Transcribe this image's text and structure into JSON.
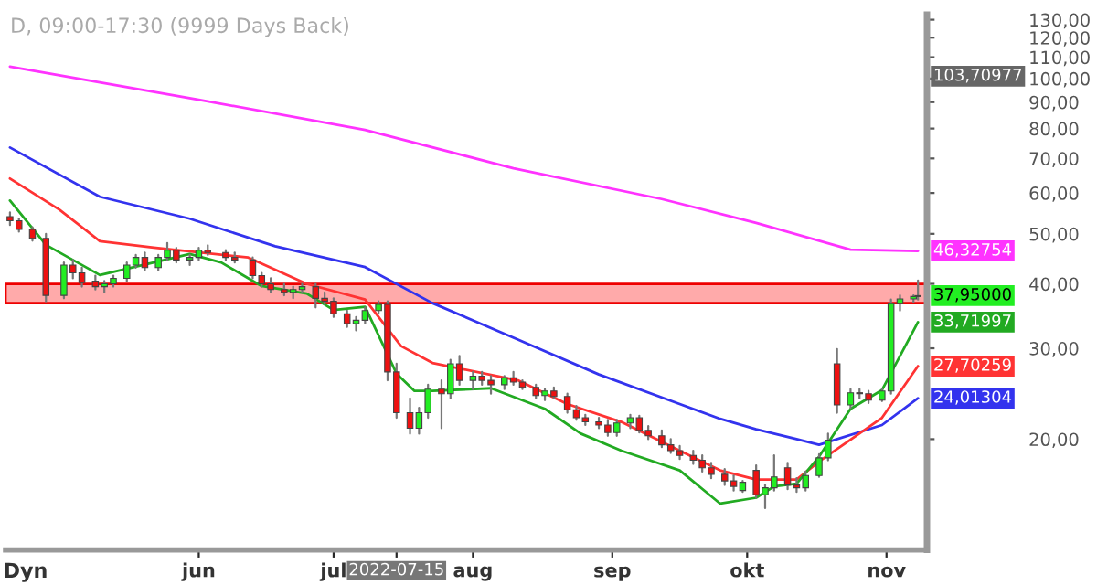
{
  "chart_data": {
    "type": "candlestick",
    "title": "D, 09:00-17:30 (9999 Days Back)",
    "log": "y",
    "grid": false,
    "legend": false,
    "xlim": [
      "2022-04-19",
      "2022-11-10"
    ],
    "ylim": [
      12.2,
      133
    ],
    "xticks": [
      {
        "value": "2022-06-01",
        "label": "jun"
      },
      {
        "value": "2022-07-01",
        "label": "jul"
      },
      {
        "value": "2022-07-15",
        "label": "2022-07-15"
      },
      {
        "value": "2022-08-01",
        "label": "aug"
      },
      {
        "value": "2022-09-01",
        "label": "sep"
      },
      {
        "value": "2022-10-01",
        "label": "okt"
      },
      {
        "value": "2022-11-01",
        "label": "nov"
      }
    ],
    "yticks": [
      {
        "value": 20,
        "label": "20,00"
      },
      {
        "value": 30,
        "label": "30,00"
      },
      {
        "value": 40,
        "label": "40,00"
      },
      {
        "value": 50,
        "label": "50,00"
      },
      {
        "value": 60,
        "label": "60,00"
      },
      {
        "value": 70,
        "label": "70,00"
      },
      {
        "value": 80,
        "label": "80,00"
      },
      {
        "value": 90,
        "label": "90,00"
      },
      {
        "value": 100,
        "label": "100,00"
      },
      {
        "value": 110,
        "label": "110,00"
      },
      {
        "value": 120,
        "label": "120,00"
      },
      {
        "value": 130,
        "label": "130,00"
      }
    ],
    "x": [
      "2022-04-20",
      "2022-04-22",
      "2022-04-25",
      "2022-04-28",
      "2022-05-02",
      "2022-05-04",
      "2022-05-06",
      "2022-05-09",
      "2022-05-11",
      "2022-05-13",
      "2022-05-16",
      "2022-05-18",
      "2022-05-20",
      "2022-05-23",
      "2022-05-25",
      "2022-05-27",
      "2022-05-30",
      "2022-06-01",
      "2022-06-03",
      "2022-06-07",
      "2022-06-09",
      "2022-06-13",
      "2022-06-15",
      "2022-06-17",
      "2022-06-20",
      "2022-06-22",
      "2022-06-24",
      "2022-06-27",
      "2022-06-29",
      "2022-07-01",
      "2022-07-04",
      "2022-07-06",
      "2022-07-08",
      "2022-07-11",
      "2022-07-13",
      "2022-07-15",
      "2022-07-18",
      "2022-07-20",
      "2022-07-22",
      "2022-07-25",
      "2022-07-27",
      "2022-07-29",
      "2022-08-01",
      "2022-08-03",
      "2022-08-05",
      "2022-08-08",
      "2022-08-10",
      "2022-08-12",
      "2022-08-15",
      "2022-08-17",
      "2022-08-19",
      "2022-08-22",
      "2022-08-24",
      "2022-08-26",
      "2022-08-29",
      "2022-08-31",
      "2022-09-02",
      "2022-09-05",
      "2022-09-07",
      "2022-09-09",
      "2022-09-12",
      "2022-09-14",
      "2022-09-16",
      "2022-09-19",
      "2022-09-21",
      "2022-09-23",
      "2022-09-26",
      "2022-09-28",
      "2022-09-30",
      "2022-10-03",
      "2022-10-05",
      "2022-10-07",
      "2022-10-10",
      "2022-10-12",
      "2022-10-14",
      "2022-10-17",
      "2022-10-19",
      "2022-10-21",
      "2022-10-24",
      "2022-10-26",
      "2022-10-28",
      "2022-10-31",
      "2022-11-02",
      "2022-11-04",
      "2022-11-07",
      "2022-11-08"
    ],
    "ohlc": [
      [
        54,
        55,
        52,
        53
      ],
      [
        53,
        53.5,
        50.5,
        51
      ],
      [
        51,
        51.5,
        48.5,
        49
      ],
      [
        49,
        50,
        37,
        38
      ],
      [
        38,
        44,
        37.5,
        43.5
      ],
      [
        43.5,
        44.5,
        41,
        42
      ],
      [
        42,
        43,
        39.5,
        40.2
      ],
      [
        40.5,
        41.5,
        39,
        39.5
      ],
      [
        39.5,
        40.5,
        38.5,
        40
      ],
      [
        40,
        41.5,
        39.5,
        41
      ],
      [
        41,
        44,
        40.5,
        43.5
      ],
      [
        43.5,
        45.5,
        43,
        45
      ],
      [
        45,
        46,
        42.5,
        43
      ],
      [
        43,
        45.5,
        42.5,
        45
      ],
      [
        45,
        48,
        44.5,
        46.5
      ],
      [
        46.5,
        47,
        44,
        44.5
      ],
      [
        44.5,
        45.5,
        43.5,
        45
      ],
      [
        45,
        47,
        44.5,
        46.5
      ],
      [
        46.5,
        47.5,
        45.5,
        46
      ],
      [
        46,
        46.5,
        44.5,
        45
      ],
      [
        45,
        46,
        44,
        44.5
      ],
      [
        44.5,
        45,
        41,
        41.5
      ],
      [
        41.5,
        42,
        39.5,
        40
      ],
      [
        40,
        41,
        38.5,
        39
      ],
      [
        39,
        40,
        38,
        38.5
      ],
      [
        38.5,
        39.5,
        37.5,
        39
      ],
      [
        39,
        40,
        38.5,
        39.5
      ],
      [
        39.5,
        40,
        36,
        37.5
      ],
      [
        37.5,
        38.5,
        36.5,
        37
      ],
      [
        37,
        37.5,
        34.5,
        35
      ],
      [
        35,
        35.5,
        33,
        33.5
      ],
      [
        33.5,
        34.5,
        32.5,
        34
      ],
      [
        34,
        36,
        33.5,
        35.5
      ],
      [
        35.5,
        37,
        35,
        36.5
      ],
      [
        36.5,
        37,
        26,
        27
      ],
      [
        27,
        28,
        22,
        22.5
      ],
      [
        22.5,
        24,
        20.5,
        21
      ],
      [
        21,
        23,
        20.5,
        22.5
      ],
      [
        22.5,
        25.5,
        22,
        25
      ],
      [
        25,
        26,
        21,
        24.5
      ],
      [
        24.5,
        28.5,
        24,
        28
      ],
      [
        28,
        29,
        25.5,
        26
      ],
      [
        26,
        27,
        25,
        26.5
      ],
      [
        26.5,
        27,
        25.5,
        26
      ],
      [
        26,
        26.5,
        24.5,
        25.5
      ],
      [
        25.5,
        26.5,
        25,
        26.3
      ],
      [
        26.3,
        27,
        25.5,
        25.8
      ],
      [
        25.8,
        26,
        25,
        25.2
      ],
      [
        25.2,
        25.5,
        24,
        24.3
      ],
      [
        24.3,
        25,
        23.8,
        24.8
      ],
      [
        24.8,
        25.2,
        24,
        24.2
      ],
      [
        24.2,
        24.5,
        22.5,
        22.8
      ],
      [
        22.8,
        23.2,
        21.8,
        22
      ],
      [
        22,
        22.3,
        21.3,
        21.6
      ],
      [
        21.6,
        22,
        21,
        21.3
      ],
      [
        21.3,
        21.8,
        20.3,
        20.6
      ],
      [
        20.6,
        21.8,
        20.3,
        21.5
      ],
      [
        21.5,
        22.3,
        21,
        22
      ],
      [
        22,
        22.2,
        20.6,
        20.8
      ],
      [
        20.8,
        21.2,
        20,
        20.3
      ],
      [
        20.3,
        20.8,
        19.3,
        19.5
      ],
      [
        19.5,
        20,
        18.8,
        19
      ],
      [
        19,
        19.4,
        18.3,
        18.6
      ],
      [
        18.6,
        19,
        17.9,
        18.2
      ],
      [
        18.2,
        18.6,
        17.3,
        17.6
      ],
      [
        17.6,
        18,
        16.8,
        17.1
      ],
      [
        17.1,
        17.5,
        16.3,
        16.6
      ],
      [
        16.6,
        17,
        15.9,
        16.2
      ],
      [
        15.9,
        16.6,
        15.8,
        16.5
      ],
      [
        17.4,
        17.8,
        15.4,
        15.6
      ],
      [
        15.6,
        16.3,
        14.7,
        16.1
      ],
      [
        16.1,
        18.6,
        15.9,
        16.9
      ],
      [
        17.6,
        18,
        16,
        16.3
      ],
      [
        16.3,
        16.8,
        15.8,
        16.1
      ],
      [
        16.1,
        17.3,
        15.9,
        17
      ],
      [
        17,
        18.7,
        16.9,
        18.4
      ],
      [
        18.4,
        20.5,
        18.2,
        19.9
      ],
      [
        28,
        29.9,
        22.5,
        23.3
      ],
      [
        23.3,
        25,
        23,
        24.6
      ],
      [
        24.6,
        25,
        24,
        24.5
      ],
      [
        24.5,
        24.8,
        23.5,
        23.8
      ],
      [
        23.8,
        25,
        23.7,
        24.8
      ],
      [
        24.8,
        37.3,
        24.5,
        36.6
      ],
      [
        36.6,
        38,
        35.5,
        37.4
      ],
      [
        37.4,
        38,
        36.8,
        37.8
      ],
      [
        37.8,
        40.6,
        37.3,
        37.95
      ]
    ],
    "colors": [
      "#ee1111",
      "#ee1111",
      "#ee1111",
      "#ee1111",
      "#22ee22",
      "#ee1111",
      "#ee1111",
      "#ee1111",
      "#22ee22",
      "#22ee22",
      "#22ee22",
      "#22ee22",
      "#ee1111",
      "#22ee22",
      "#22ee22",
      "#ee1111",
      "#22ee22",
      "#22ee22",
      "#ee1111",
      "#ee1111",
      "#ee1111",
      "#ee1111",
      "#ee1111",
      "#ee1111",
      "#ee1111",
      "#22ee22",
      "#22ee22",
      "#ee1111",
      "#ee1111",
      "#ee1111",
      "#ee1111",
      "#22ee22",
      "#22ee22",
      "#22ee22",
      "#ee1111",
      "#ee1111",
      "#ee1111",
      "#22ee22",
      "#22ee22",
      "#ee1111",
      "#22ee22",
      "#ee1111",
      "#22ee22",
      "#ee1111",
      "#ee1111",
      "#22ee22",
      "#ee1111",
      "#ee1111",
      "#ee1111",
      "#22ee22",
      "#ee1111",
      "#ee1111",
      "#ee1111",
      "#ee1111",
      "#ee1111",
      "#ee1111",
      "#22ee22",
      "#22ee22",
      "#ee1111",
      "#ee1111",
      "#ee1111",
      "#ee1111",
      "#ee1111",
      "#ee1111",
      "#ee1111",
      "#ee1111",
      "#ee1111",
      "#ee1111",
      "#22ee22",
      "#ee1111",
      "#22ee22",
      "#22ee22",
      "#ee1111",
      "#ee1111",
      "#22ee22",
      "#22ee22",
      "#22ee22",
      "#ee1111",
      "#22ee22",
      "#ee1111",
      "#ee1111",
      "#22ee22",
      "#22ee22",
      "#22ee22",
      "#22ee22",
      "#22ee22"
    ],
    "value_labels": [
      null,
      null,
      null,
      null,
      null,
      null,
      null,
      null,
      null,
      null,
      null,
      null,
      null,
      null,
      null,
      null,
      null,
      null,
      null,
      null,
      null,
      null,
      null,
      null,
      null,
      null,
      null,
      null,
      null,
      null,
      null,
      null,
      null,
      null,
      null,
      null,
      null,
      null,
      null,
      null,
      null,
      null,
      null,
      null,
      null,
      null,
      null,
      null,
      null,
      null,
      null,
      null,
      null,
      null,
      null,
      null,
      null,
      null,
      null,
      null,
      null,
      null,
      null,
      null,
      null,
      null,
      null,
      null,
      null,
      null,
      null,
      null,
      null,
      null,
      null,
      null,
      null,
      null,
      null,
      null,
      null,
      null,
      null,
      null,
      null,
      "37,95000"
    ],
    "series": [
      {
        "type": "line",
        "color": "#ff33ff",
        "x": [
          "2022-04-20",
          "2022-06-01",
          "2022-07-08",
          "2022-08-10",
          "2022-09-12",
          "2022-10-03",
          "2022-10-24",
          "2022-11-08"
        ],
        "values": [
          105.5,
          91,
          79.5,
          67,
          58.4,
          52.5,
          46.6,
          46.32754
        ],
        "value_labels": [
          null,
          null,
          null,
          null,
          null,
          null,
          null,
          "46,32754"
        ]
      },
      {
        "type": "line",
        "color": "#3333ee",
        "x": [
          "2022-04-20",
          "2022-05-10",
          "2022-05-30",
          "2022-06-18",
          "2022-07-08",
          "2022-07-23",
          "2022-08-11",
          "2022-08-29",
          "2022-09-16",
          "2022-09-25",
          "2022-10-03",
          "2022-10-12",
          "2022-10-17",
          "2022-10-31",
          "2022-11-08"
        ],
        "values": [
          73.5,
          59,
          53.5,
          47.3,
          43.1,
          36.7,
          31.2,
          26.7,
          23.4,
          21.9,
          20.9,
          20,
          19.5,
          21.3,
          24.01304
        ],
        "value_labels": [
          null,
          null,
          null,
          null,
          null,
          null,
          null,
          null,
          null,
          null,
          null,
          null,
          null,
          null,
          "24,01304"
        ]
      },
      {
        "type": "line",
        "color": "#ff3333",
        "x": [
          "2022-04-20",
          "2022-05-01",
          "2022-05-10",
          "2022-05-22",
          "2022-06-12",
          "2022-06-25",
          "2022-07-08",
          "2022-07-16",
          "2022-07-23",
          "2022-08-11",
          "2022-08-22",
          "2022-09-03",
          "2022-09-16",
          "2022-09-25",
          "2022-10-03",
          "2022-10-12",
          "2022-10-17",
          "2022-10-31",
          "2022-11-08"
        ],
        "values": [
          64,
          55.7,
          48.4,
          47,
          45,
          40,
          37.3,
          30.3,
          28.1,
          26,
          23.4,
          21.6,
          19,
          17.4,
          16.7,
          16.7,
          18.1,
          22,
          27.70259
        ],
        "value_labels": [
          null,
          null,
          null,
          null,
          null,
          null,
          null,
          null,
          null,
          null,
          null,
          null,
          null,
          null,
          null,
          null,
          null,
          null,
          "27,70259"
        ]
      },
      {
        "type": "line",
        "color": "#22aa22",
        "x": [
          "2022-04-20",
          "2022-04-28",
          "2022-05-10",
          "2022-05-22",
          "2022-05-30",
          "2022-06-06",
          "2022-06-15",
          "2022-06-25",
          "2022-07-01",
          "2022-07-08",
          "2022-07-15",
          "2022-07-19",
          "2022-07-23",
          "2022-08-05",
          "2022-08-17",
          "2022-08-25",
          "2022-09-03",
          "2022-09-16",
          "2022-09-25",
          "2022-10-03",
          "2022-10-07",
          "2022-10-12",
          "2022-10-17",
          "2022-10-24",
          "2022-10-31",
          "2022-11-08"
        ],
        "values": [
          58,
          47.6,
          41.6,
          44,
          45.7,
          44,
          39.6,
          38.3,
          35.6,
          36.1,
          26.8,
          24.8,
          24.8,
          25.1,
          22.9,
          20.5,
          19,
          17.4,
          15,
          15.4,
          16.2,
          16.4,
          18.5,
          22.9,
          24.9,
          33.71997
        ],
        "value_labels": [
          null,
          null,
          null,
          null,
          null,
          null,
          null,
          null,
          null,
          null,
          null,
          null,
          null,
          null,
          null,
          null,
          null,
          null,
          null,
          null,
          null,
          null,
          null,
          null,
          null,
          "33,71997"
        ]
      }
    ],
    "bands": [
      {
        "axis": "y",
        "from": 36.7,
        "to": 40,
        "color": "#ffaaaa"
      }
    ],
    "annotations": [
      "103,70977",
      "Dyn"
    ]
  }
}
